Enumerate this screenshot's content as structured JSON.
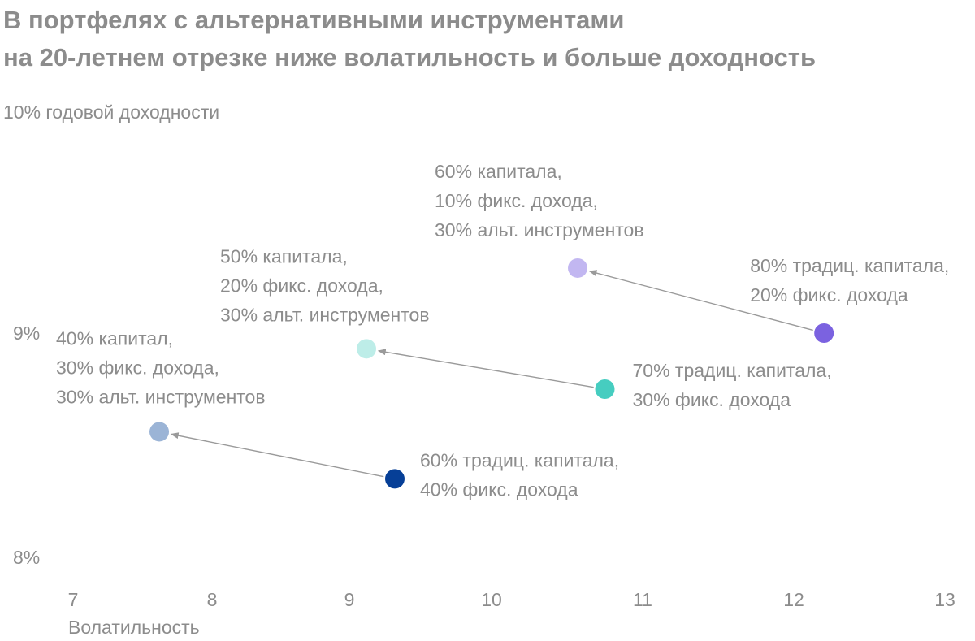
{
  "title": {
    "line1": "В портфелях с альтернативными инструментами",
    "line2": "на 20-летнем отрезке ниже волатильность и больше доходность"
  },
  "chart_data": {
    "type": "scatter",
    "title": "В портфелях с альтернативными инструментами на 20-летнем отрезке ниже волатильность и больше доходность",
    "xlabel": "Волатильность",
    "ylabel_top": "10% годовой доходности",
    "xlim": [
      7,
      13
    ],
    "x_ticks": [
      7,
      8,
      9,
      10,
      11,
      12,
      13
    ],
    "y_ticks": [
      {
        "value": 9,
        "label": "9%"
      },
      {
        "value": 8,
        "label": "8%"
      }
    ],
    "ylim": [
      8,
      10
    ],
    "grid": false,
    "colors": {
      "p1_from": "#7b62e0",
      "p1_to": "#c2b7f1",
      "p2_from": "#46cdc0",
      "p2_to": "#bdede8",
      "p3_from": "#063f97",
      "p3_to": "#9bb4d6",
      "arrow": "#9a9a9a",
      "text": "#8c8c8c"
    },
    "points": [
      {
        "id": "p1_from",
        "x": 12.2,
        "y": 9.0,
        "color": "#7b62e0",
        "label": [
          "80% традиц. капитала,",
          "20% фикс. дохода"
        ]
      },
      {
        "id": "p1_to",
        "x": 10.57,
        "y": 9.29,
        "color": "#c2b7f1",
        "label": [
          "60% капитала,",
          "10% фикс. дохода,",
          "30% альт. инструментов"
        ]
      },
      {
        "id": "p2_from",
        "x": 10.75,
        "y": 8.75,
        "color": "#46cdc0",
        "label": [
          "70% традиц. капитала,",
          "30% фикс. дохода"
        ]
      },
      {
        "id": "p2_to",
        "x": 9.12,
        "y": 8.93,
        "color": "#bdede8",
        "label": [
          "50% капитала,",
          "20% фикс. дохода,",
          "30% альт. инструментов"
        ]
      },
      {
        "id": "p3_from",
        "x": 9.32,
        "y": 8.35,
        "color": "#063f97",
        "label": [
          "60% традиц. капитала,",
          "40% фикс. дохода"
        ]
      },
      {
        "id": "p3_to",
        "x": 7.62,
        "y": 8.56,
        "color": "#9bb4d6",
        "label": [
          "40% капитал,",
          "30% фикс. дохода,",
          "30% альт. инструментов"
        ]
      }
    ],
    "arrows": [
      {
        "from": "p1_from",
        "to": "p1_to"
      },
      {
        "from": "p2_from",
        "to": "p2_to"
      },
      {
        "from": "p3_from",
        "to": "p3_to"
      }
    ]
  }
}
